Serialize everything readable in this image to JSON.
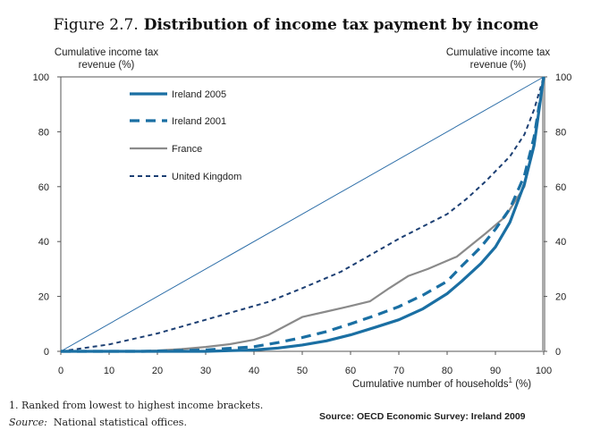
{
  "figure": {
    "number": "Figure 2.7.",
    "title": "Distribution of income tax payment by income"
  },
  "footnotes": {
    "note1": "1.  Ranked from lowest to highest income brackets.",
    "source_label": "Source:",
    "source_text": "National statistical offices."
  },
  "source_credit": "Source: OECD Economic Survey: Ireland 2009",
  "chart_data": {
    "type": "line",
    "title": "Distribution of income tax payment by income",
    "xlabel": "Cumulative number of households",
    "xlabel_sup": "1",
    "xlabel_unit": "(%)",
    "ylabel": "Cumulative income tax revenue (%)",
    "ylabel_right": "Cumulative income tax revenue (%)",
    "xlim": [
      0,
      100
    ],
    "ylim": [
      0,
      100
    ],
    "xticks": [
      0,
      10,
      20,
      30,
      40,
      50,
      60,
      70,
      80,
      90,
      100
    ],
    "yticks": [
      0,
      20,
      40,
      60,
      80,
      100
    ],
    "grid": false,
    "legend_position": "top-left",
    "series": [
      {
        "name": "Ireland 2005",
        "color": "#1a6fa3",
        "style": "solid-thick",
        "x": [
          0,
          17,
          30,
          40,
          45,
          50,
          55,
          60,
          65,
          70,
          75,
          80,
          83,
          87,
          90,
          93,
          96,
          98,
          100
        ],
        "y": [
          0,
          0,
          0,
          0.5,
          1.2,
          2.3,
          3.8,
          6,
          8.7,
          11.5,
          15.5,
          21,
          25.5,
          32,
          38,
          47,
          61,
          75,
          100
        ]
      },
      {
        "name": "Ireland 2001",
        "color": "#1a6fa3",
        "style": "dashed-thick",
        "x": [
          0,
          17,
          30,
          40,
          45,
          50,
          55,
          60,
          65,
          70,
          75,
          80,
          83,
          87,
          90,
          93,
          96,
          98,
          100
        ],
        "y": [
          0,
          0,
          0.5,
          1.7,
          3.2,
          5,
          7.2,
          10,
          13,
          16.3,
          20.5,
          25.5,
          31,
          38,
          44.5,
          52,
          64,
          78,
          100
        ]
      },
      {
        "name": "France",
        "color": "#8a8a8a",
        "style": "solid",
        "x": [
          0,
          15,
          20,
          25,
          30,
          35,
          40,
          43,
          50,
          55,
          60,
          64,
          68,
          72,
          76,
          82,
          88,
          92,
          96,
          98,
          100
        ],
        "y": [
          0,
          0,
          0.3,
          0.8,
          1.6,
          2.6,
          4.2,
          6,
          12.5,
          14.5,
          16.5,
          18.2,
          23,
          27.5,
          30,
          34.5,
          43,
          49,
          60,
          76,
          100
        ]
      },
      {
        "name": "United Kingdom",
        "color": "#1c3f73",
        "style": "dotted",
        "x": [
          0,
          10,
          20,
          30,
          43,
          50,
          58,
          64,
          70,
          75,
          80,
          84,
          88,
          93,
          96,
          98,
          100
        ],
        "y": [
          0,
          2.5,
          6.5,
          11.5,
          18,
          23,
          29,
          35,
          41,
          45.5,
          50,
          55.5,
          62,
          71,
          79,
          88,
          100
        ]
      },
      {
        "name": "",
        "color": "#2d6ea8",
        "style": "thin",
        "x": [
          0,
          100
        ],
        "y": [
          0,
          100
        ]
      }
    ]
  }
}
